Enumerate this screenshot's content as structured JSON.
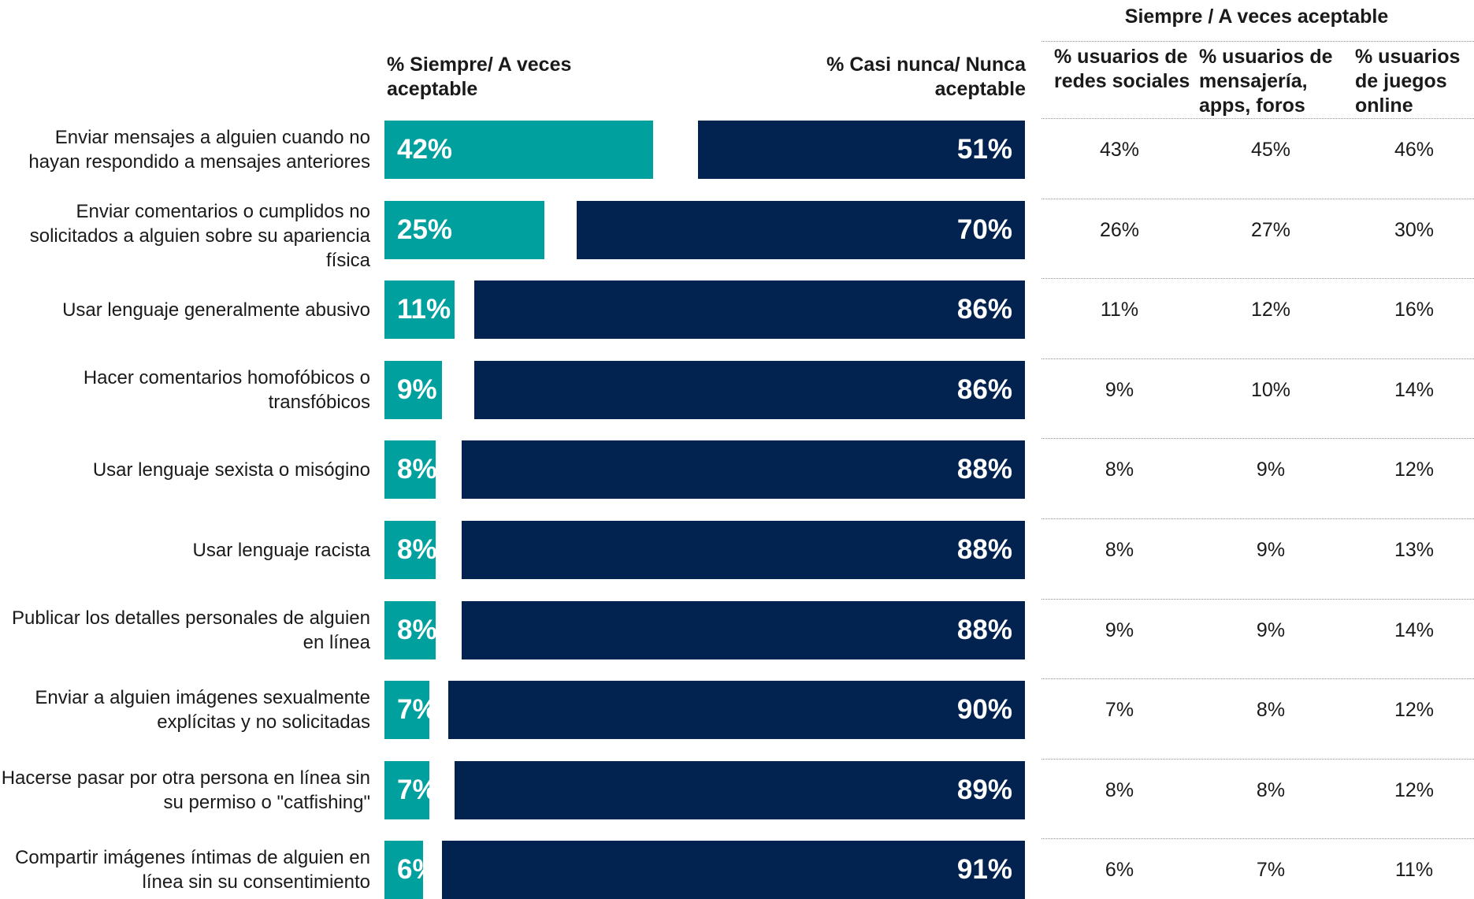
{
  "colors": {
    "accept": "#00A09E",
    "reject": "#022350",
    "bar_text": "#FFFFFF"
  },
  "headers": {
    "left": "% Siempre/ A veces aceptable",
    "right": "% Casi nunca/ Nunca aceptable",
    "table_title": "Siempre / A veces aceptable",
    "table_columns": [
      "% usuarios de redes sociales",
      "% usuarios de mensajería, apps, foros",
      "% usuarios de juegos online"
    ]
  },
  "chart_data": {
    "type": "bar",
    "orientation": "horizontal",
    "categories": [
      "Enviar mensajes a alguien cuando no hayan respondido a mensajes anteriores",
      "Enviar comentarios o cumplidos no solicitados a alguien sobre su apariencia física",
      "Usar lenguaje generalmente abusivo",
      "Hacer comentarios homofóbicos o transfóbicos",
      "Usar lenguaje sexista o misógino",
      "Usar lenguaje racista",
      "Publicar los detalles personales de alguien en línea",
      "Enviar a alguien imágenes sexualmente explícitas y no solicitadas",
      "Hacerse pasar por otra persona en línea sin su permiso o \"catfishing\"",
      "Compartir imágenes íntimas de alguien en línea sin su consentimiento"
    ],
    "series": [
      {
        "name": "% Siempre/ A veces aceptable",
        "values": [
          42,
          25,
          11,
          9,
          8,
          8,
          8,
          7,
          7,
          6
        ]
      },
      {
        "name": "% Casi nunca/ Nunca aceptable",
        "values": [
          51,
          70,
          86,
          86,
          88,
          88,
          88,
          90,
          89,
          91
        ]
      }
    ],
    "value_labels": {
      "accept": [
        "42%",
        "25%",
        "11%",
        "9%",
        "8%",
        "8%",
        "8%",
        "7%",
        "7%",
        "6%"
      ],
      "reject": [
        "51%",
        "70%",
        "86%",
        "86%",
        "88%",
        "88%",
        "88%",
        "90%",
        "89%",
        "91%"
      ]
    },
    "table": {
      "title": "Siempre / A veces aceptable",
      "columns": [
        "% usuarios de redes sociales",
        "% usuarios de mensajería, apps, foros",
        "% usuarios de juegos online"
      ],
      "rows": [
        [
          "43%",
          "45%",
          "46%"
        ],
        [
          "26%",
          "27%",
          "30%"
        ],
        [
          "11%",
          "12%",
          "16%"
        ],
        [
          "9%",
          "10%",
          "14%"
        ],
        [
          "8%",
          "9%",
          "12%"
        ],
        [
          "8%",
          "9%",
          "13%"
        ],
        [
          "9%",
          "9%",
          "14%"
        ],
        [
          "7%",
          "8%",
          "12%"
        ],
        [
          "8%",
          "8%",
          "12%"
        ],
        [
          "6%",
          "7%",
          "11%"
        ]
      ]
    },
    "xlim": [
      0,
      100
    ]
  }
}
